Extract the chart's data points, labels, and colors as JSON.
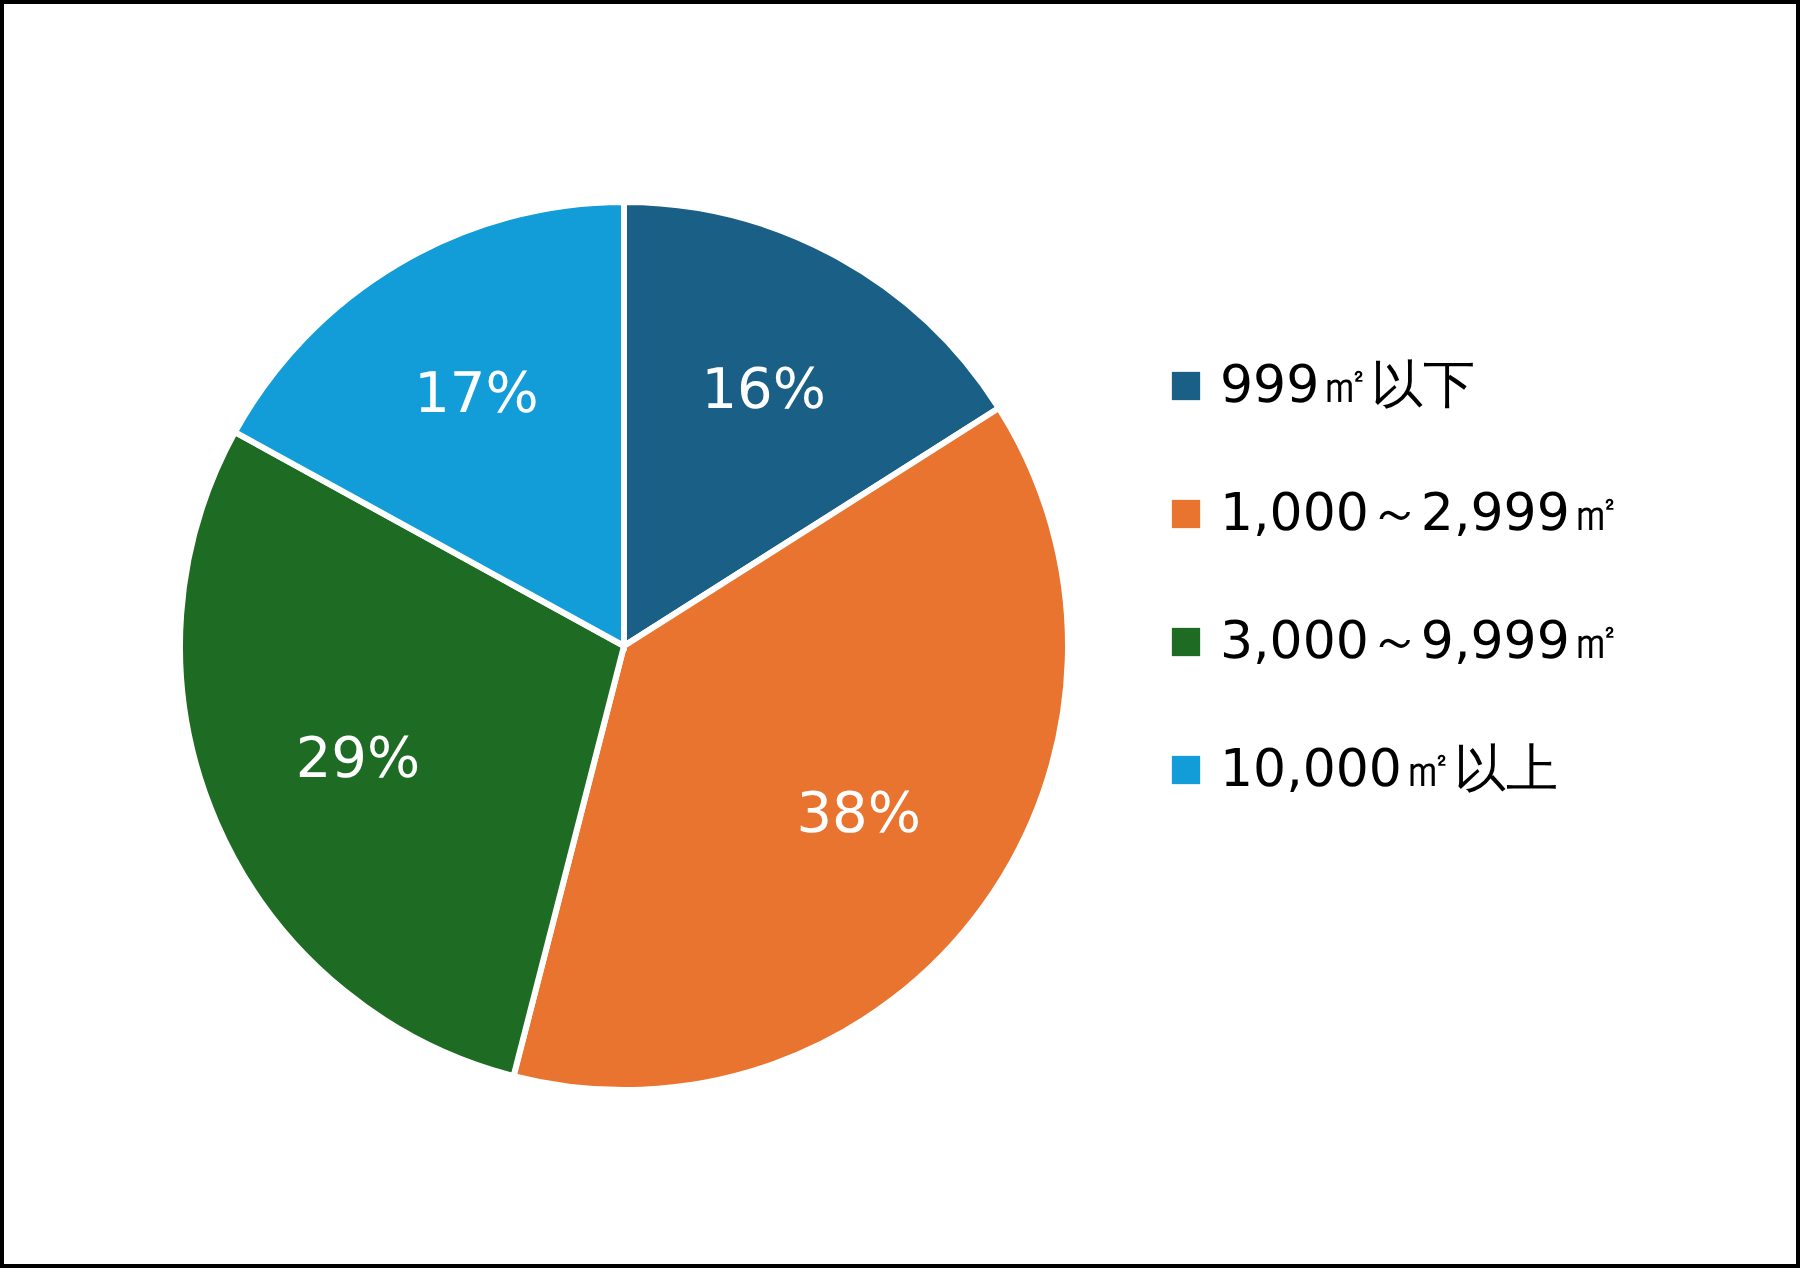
{
  "chart_data": {
    "type": "pie",
    "categories": [
      "999㎡以下",
      "1,000～2,999㎡",
      "3,000～9,999㎡",
      "10,000㎡以上"
    ],
    "values": [
      16,
      38,
      29,
      17
    ],
    "value_labels": [
      "16%",
      "38%",
      "29%",
      "17%"
    ],
    "colors": [
      "#1a5f85",
      "#e87430",
      "#1e6b24",
      "#139dd8"
    ],
    "legend": "right"
  }
}
